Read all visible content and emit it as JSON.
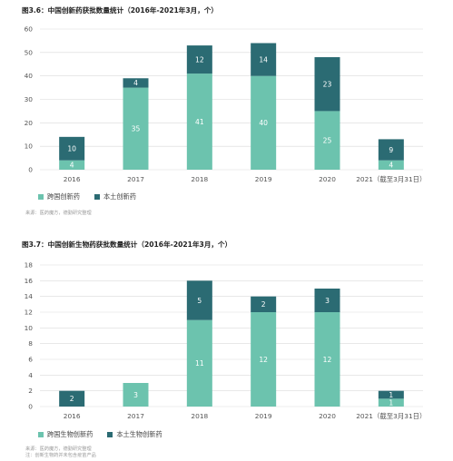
{
  "colors": {
    "foreign": "#6cc3ae",
    "domestic": "#2b6b73",
    "grid": "#d9d9d9",
    "axis_text": "#555555"
  },
  "figures": [
    {
      "title": "图3.6：中国创新药获批数量统计（2016年-2021年3月，个）",
      "source_lines": [
        "来源：医药魔方，德勤研究整理"
      ],
      "chart_data": {
        "type": "bar",
        "stacked": true,
        "categories": [
          "2016",
          "2017",
          "2018",
          "2019",
          "2020",
          "2021（截至3月31日）"
        ],
        "series": [
          {
            "name": "跨国创新药",
            "values": [
              4,
              35,
              41,
              40,
              25,
              4
            ]
          },
          {
            "name": "本土创新药",
            "values": [
              10,
              4,
              12,
              14,
              23,
              9
            ]
          }
        ],
        "ylim": [
          0,
          60
        ],
        "yticks": [
          0,
          10,
          20,
          30,
          40,
          50,
          60
        ],
        "grid": true,
        "legend_position": "bottom-left"
      }
    },
    {
      "title": "图3.7：中国创新生物药获批数量统计（2016年-2021年3月，个）",
      "source_lines": [
        "来源：医药魔方，德勤研究整理",
        "注：创新生物药并未包含疫苗产品"
      ],
      "chart_data": {
        "type": "bar",
        "stacked": true,
        "categories": [
          "2016",
          "2017",
          "2018",
          "2019",
          "2020",
          "2021（截至3月31日）"
        ],
        "series": [
          {
            "name": "跨国生物创新药",
            "values": [
              0,
              3,
              11,
              12,
              12,
              1
            ]
          },
          {
            "name": "本土生物创新药",
            "values": [
              2,
              0,
              5,
              2,
              3,
              1
            ]
          }
        ],
        "ylim": [
          0,
          18
        ],
        "yticks": [
          0,
          2,
          4,
          6,
          8,
          10,
          12,
          14,
          16,
          18
        ],
        "grid": true,
        "legend_position": "bottom-left"
      }
    }
  ]
}
